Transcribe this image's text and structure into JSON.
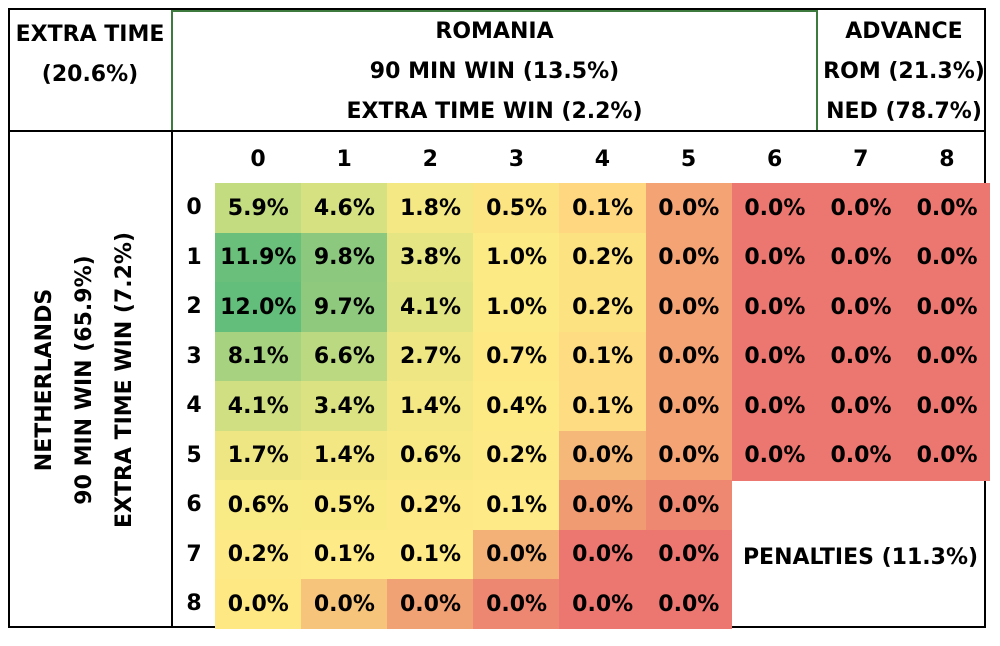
{
  "header": {
    "extra_time_lines": [
      "EXTRA TIME",
      "(20.6%)"
    ],
    "romania_lines": [
      "ROMANIA",
      "90 MIN WIN (13.5%)",
      "EXTRA TIME WIN (2.2%)"
    ],
    "advance_lines": [
      "ADVANCE",
      "ROM (21.3%)",
      "NED (78.7%)"
    ]
  },
  "netherlands_lines": [
    "NETHERLANDS",
    "90 MIN WIN (65.9%)",
    "EXTRA TIME WIN (7.2%)"
  ],
  "penalties_label": "PENALTIES (11.3%)",
  "colors": {
    "high": "#63be7b",
    "mid": "#ffeb84",
    "low": "#f8696b",
    "border": "#000000",
    "romania_box": "#3d7a3d"
  },
  "chart_data": {
    "type": "heatmap",
    "x_label_side": "ROMANIA",
    "y_label_side": "NETHERLANDS",
    "x": [
      "0",
      "1",
      "2",
      "3",
      "4",
      "5",
      "6",
      "7",
      "8"
    ],
    "y": [
      "0",
      "1",
      "2",
      "3",
      "4",
      "5",
      "6",
      "7",
      "8"
    ],
    "values": [
      [
        "5.9%",
        "4.6%",
        "1.8%",
        "0.5%",
        "0.1%",
        "0.0%",
        "0.0%",
        "0.0%",
        "0.0%"
      ],
      [
        "11.9%",
        "9.8%",
        "3.8%",
        "1.0%",
        "0.2%",
        "0.0%",
        "0.0%",
        "0.0%",
        "0.0%"
      ],
      [
        "12.0%",
        "9.7%",
        "4.1%",
        "1.0%",
        "0.2%",
        "0.0%",
        "0.0%",
        "0.0%",
        "0.0%"
      ],
      [
        "8.1%",
        "6.6%",
        "2.7%",
        "0.7%",
        "0.1%",
        "0.0%",
        "0.0%",
        "0.0%",
        "0.0%"
      ],
      [
        "4.1%",
        "3.4%",
        "1.4%",
        "0.4%",
        "0.1%",
        "0.0%",
        "0.0%",
        "0.0%",
        "0.0%"
      ],
      [
        "1.7%",
        "1.4%",
        "0.6%",
        "0.2%",
        "0.0%",
        "0.0%",
        "0.0%",
        "0.0%",
        "0.0%"
      ],
      [
        "0.6%",
        "0.5%",
        "0.2%",
        "0.1%",
        "0.0%",
        "0.0%",
        null,
        null,
        null
      ],
      [
        "0.2%",
        "0.1%",
        "0.1%",
        "0.0%",
        "0.0%",
        "0.0%",
        null,
        null,
        null
      ],
      [
        "0.0%",
        "0.0%",
        "0.0%",
        "0.0%",
        "0.0%",
        "0.0%",
        null,
        null,
        null
      ]
    ],
    "cell_colors": [
      [
        "#c3dc80",
        "#d6e182",
        "#f3e884",
        "#fde483",
        "#fed780",
        "#f4a374",
        "#ec7670",
        "#ec7670",
        "#ec7670"
      ],
      [
        "#6abf7b",
        "#8cc87d",
        "#e5e583",
        "#fcea84",
        "#fde282",
        "#f4a374",
        "#ec7670",
        "#ec7670",
        "#ec7670"
      ],
      [
        "#63be7b",
        "#8fc97e",
        "#e1e483",
        "#fcea84",
        "#fde282",
        "#f4a374",
        "#ec7670",
        "#ec7670",
        "#ec7670"
      ],
      [
        "#a7d27f",
        "#bbd980",
        "#eee683",
        "#fde883",
        "#fedc81",
        "#f4a374",
        "#ec7670",
        "#ec7670",
        "#ec7670"
      ],
      [
        "#d0df81",
        "#dae282",
        "#f3e884",
        "#fdea84",
        "#fedc81",
        "#f4a374",
        "#ec7670",
        "#ec7670",
        "#ec7670"
      ],
      [
        "#eee683",
        "#f2e783",
        "#f8e984",
        "#fde985",
        "#f6b878",
        "#f4a374",
        "#ec7670",
        "#ec7670",
        "#ec7670"
      ],
      [
        "#f8ea84",
        "#f9ea84",
        "#fde985",
        "#feea86",
        "#f19b73",
        "#ee8871",
        null,
        null,
        null
      ],
      [
        "#fde985",
        "#feea86",
        "#feea86",
        "#f4b177",
        "#ec7670",
        "#ec7670",
        null,
        null,
        null
      ],
      [
        "#fee883",
        "#f7c47b",
        "#f0a274",
        "#ed8771",
        "#ec7670",
        "#ec7670",
        null,
        null,
        null
      ]
    ]
  }
}
